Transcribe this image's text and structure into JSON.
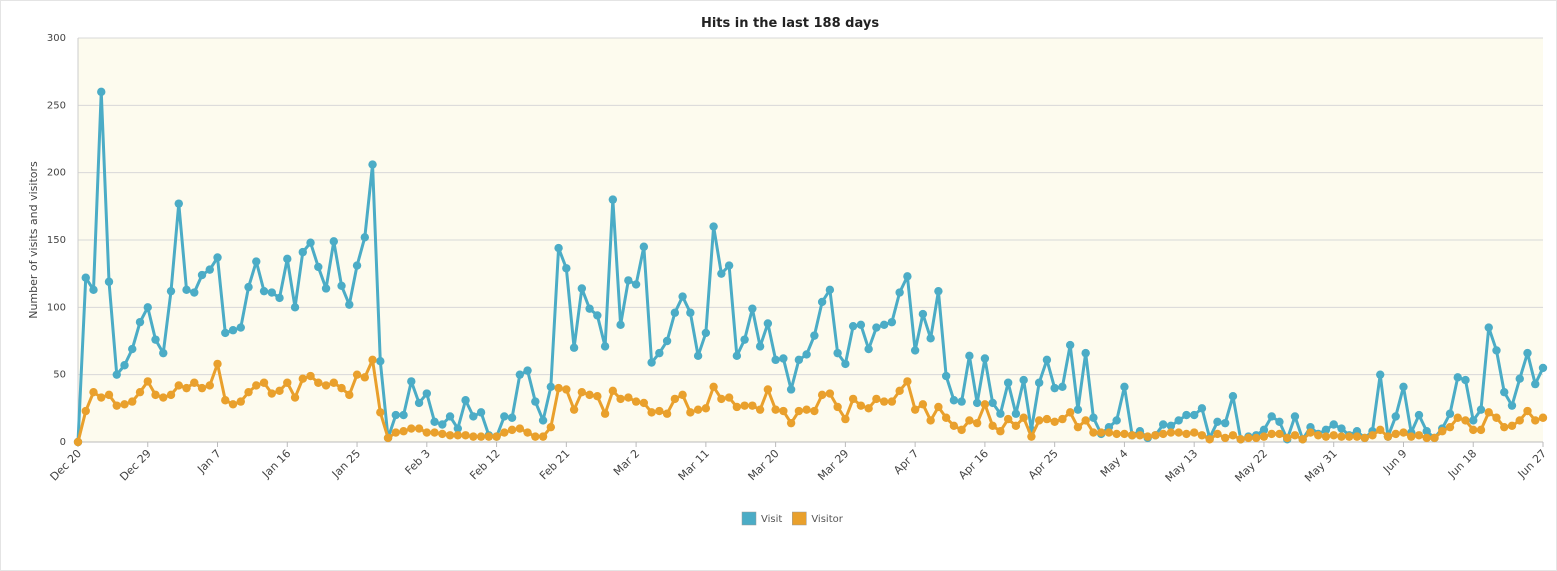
{
  "chart_data": {
    "type": "line",
    "title": "Hits in the last 188 days",
    "y_label": "Number of visits and visitors",
    "categories": [
      "Dec 20",
      null,
      null,
      null,
      null,
      null,
      null,
      null,
      null,
      "Dec 29",
      null,
      null,
      null,
      null,
      null,
      null,
      null,
      null,
      "Jan 7",
      null,
      null,
      null,
      null,
      null,
      null,
      null,
      null,
      "Jan 16",
      null,
      null,
      null,
      null,
      null,
      null,
      null,
      null,
      "Jan 25",
      null,
      null,
      null,
      null,
      null,
      null,
      null,
      null,
      "Feb 3",
      null,
      null,
      null,
      null,
      null,
      null,
      null,
      null,
      "Feb 12",
      null,
      null,
      null,
      null,
      null,
      null,
      null,
      null,
      "Feb 21",
      null,
      null,
      null,
      null,
      null,
      null,
      null,
      null,
      "Mar 2",
      null,
      null,
      null,
      null,
      null,
      null,
      null,
      null,
      "Mar 11",
      null,
      null,
      null,
      null,
      null,
      null,
      null,
      null,
      "Mar 20",
      null,
      null,
      null,
      null,
      null,
      null,
      null,
      null,
      "Mar 29",
      null,
      null,
      null,
      null,
      null,
      null,
      null,
      null,
      "Apr 7",
      null,
      null,
      null,
      null,
      null,
      null,
      null,
      null,
      "Apr 16",
      null,
      null,
      null,
      null,
      null,
      null,
      null,
      null,
      "Apr 25",
      null,
      null,
      null,
      null,
      null,
      null,
      null,
      null,
      "May 4",
      null,
      null,
      null,
      null,
      null,
      null,
      null,
      null,
      "May 13",
      null,
      null,
      null,
      null,
      null,
      null,
      null,
      null,
      "May 22",
      null,
      null,
      null,
      null,
      null,
      null,
      null,
      null,
      "May 31",
      null,
      null,
      null,
      null,
      null,
      null,
      null,
      null,
      "Jun 9",
      null,
      null,
      null,
      null,
      null,
      null,
      null,
      null,
      "Jun 18",
      null,
      null,
      null,
      null,
      null,
      null,
      null,
      null,
      "Jun 27"
    ],
    "series": [
      {
        "name": "Visit",
        "color": "#4bacc6",
        "values": [
          0,
          122,
          113,
          260,
          119,
          50,
          57,
          69,
          89,
          100,
          76,
          66,
          112,
          177,
          113,
          111,
          124,
          128,
          137,
          81,
          83,
          85,
          115,
          134,
          112,
          111,
          107,
          136,
          100,
          141,
          148,
          130,
          114,
          149,
          116,
          102,
          131,
          152,
          206,
          60,
          3,
          20,
          20,
          45,
          29,
          36,
          15,
          13,
          19,
          10,
          31,
          19,
          22,
          5,
          4,
          19,
          18,
          50,
          53,
          30,
          16,
          41,
          144,
          129,
          70,
          114,
          99,
          94,
          71,
          180,
          87,
          120,
          117,
          145,
          59,
          66,
          75,
          96,
          108,
          96,
          64,
          81,
          160,
          125,
          131,
          64,
          76,
          99,
          71,
          88,
          61,
          62,
          39,
          61,
          65,
          79,
          104,
          113,
          66,
          58,
          86,
          87,
          69,
          85,
          87,
          89,
          111,
          123,
          68,
          95,
          77,
          112,
          49,
          31,
          30,
          64,
          29,
          62,
          29,
          21,
          44,
          21,
          46,
          9,
          44,
          61,
          40,
          41,
          72,
          24,
          66,
          18,
          6,
          11,
          16,
          41,
          5,
          8,
          3,
          5,
          13,
          12,
          16,
          20,
          20,
          25,
          3,
          15,
          14,
          34,
          2,
          4,
          5,
          9,
          19,
          15,
          2,
          19,
          2,
          11,
          6,
          9,
          13,
          10,
          5,
          8,
          3,
          8,
          50,
          4,
          19,
          41,
          7,
          20,
          8,
          3,
          10,
          21,
          48,
          46,
          16,
          24,
          85,
          68,
          37,
          27,
          47,
          66,
          43,
          55
        ]
      },
      {
        "name": "Visitor",
        "color": "#e9a02c",
        "values": [
          0,
          23,
          37,
          33,
          35,
          27,
          28,
          30,
          37,
          45,
          35,
          33,
          35,
          42,
          40,
          44,
          40,
          42,
          58,
          31,
          28,
          30,
          37,
          42,
          44,
          36,
          38,
          44,
          33,
          47,
          49,
          44,
          42,
          44,
          40,
          35,
          50,
          48,
          61,
          22,
          3,
          7,
          8,
          10,
          10,
          7,
          7,
          6,
          5,
          5,
          5,
          4,
          4,
          4,
          4,
          7,
          9,
          10,
          7,
          4,
          4,
          11,
          40,
          39,
          24,
          37,
          35,
          34,
          21,
          38,
          32,
          33,
          30,
          29,
          22,
          23,
          21,
          32,
          35,
          22,
          24,
          25,
          41,
          32,
          33,
          26,
          27,
          27,
          24,
          39,
          24,
          23,
          14,
          23,
          24,
          23,
          35,
          36,
          26,
          17,
          32,
          27,
          25,
          32,
          30,
          30,
          38,
          45,
          24,
          28,
          16,
          26,
          18,
          12,
          9,
          16,
          14,
          28,
          12,
          8,
          17,
          12,
          18,
          4,
          16,
          17,
          15,
          17,
          22,
          11,
          16,
          7,
          7,
          7,
          6,
          6,
          5,
          5,
          4,
          5,
          6,
          7,
          7,
          6,
          7,
          5,
          2,
          6,
          3,
          5,
          2,
          3,
          3,
          4,
          6,
          6,
          3,
          5,
          2,
          7,
          5,
          4,
          5,
          4,
          4,
          4,
          3,
          5,
          9,
          4,
          6,
          7,
          4,
          5,
          3,
          3,
          8,
          11,
          18,
          16,
          9,
          9,
          22,
          18,
          11,
          12,
          16,
          23,
          16,
          18
        ]
      }
    ],
    "ylim": [
      0,
      300
    ],
    "yticks": [
      0,
      50,
      100,
      150,
      200,
      250,
      300
    ],
    "grid": true,
    "legend": "bottom",
    "background": "#fdfbee"
  }
}
